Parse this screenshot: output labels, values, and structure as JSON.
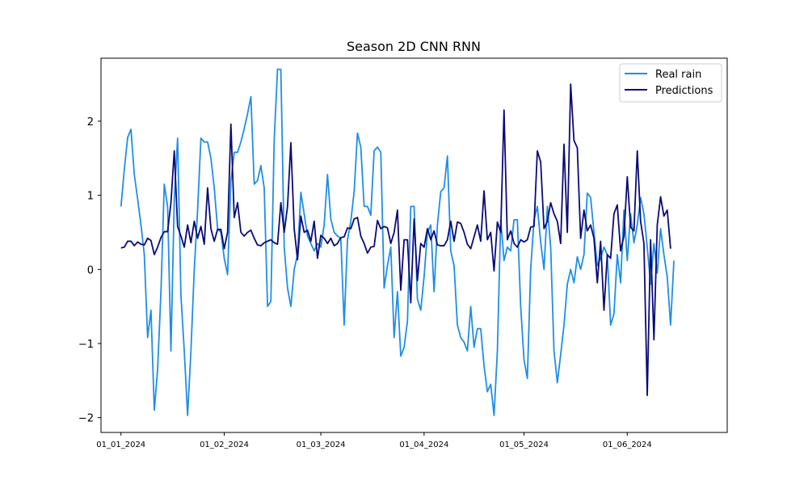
{
  "chart_data": {
    "type": "line",
    "title": "Season 2D CNN RNN",
    "xlabel": "",
    "ylabel": "",
    "ylim": [
      -2.2,
      2.85
    ],
    "xlim": [
      -6,
      182
    ],
    "yticks": [
      -2,
      -1,
      0,
      1,
      2
    ],
    "xticks": [
      {
        "day": 0,
        "label": "01_01_2024"
      },
      {
        "day": 31,
        "label": "01_02_2024"
      },
      {
        "day": 60,
        "label": "01_03_2024"
      },
      {
        "day": 91,
        "label": "01_04_2024"
      },
      {
        "day": 121,
        "label": "01_05_2024"
      },
      {
        "day": 152,
        "label": "01_06_2024"
      }
    ],
    "grid": false,
    "legend_position": "top-right",
    "series": [
      {
        "name": "Real rain",
        "color": "#1f8ee6",
        "values": [
          0.85,
          1.35,
          1.78,
          1.89,
          1.28,
          0.95,
          0.6,
          0.2,
          -0.92,
          -0.55,
          -1.9,
          -1.35,
          -0.3,
          1.15,
          0.85,
          -1.1,
          0.95,
          1.77,
          -0.35,
          -1.1,
          -1.97,
          -1.1,
          0.0,
          0.8,
          1.77,
          1.72,
          1.72,
          1.5,
          1.1,
          0.55,
          0.5,
          0.15,
          -0.07,
          1.2,
          1.58,
          1.58,
          1.72,
          1.9,
          2.1,
          2.33,
          1.15,
          1.2,
          1.4,
          1.1,
          -0.5,
          -0.43,
          1.75,
          2.7,
          2.7,
          0.3,
          -0.25,
          -0.5,
          0.0,
          0.2,
          1.04,
          0.75,
          0.45,
          0.35,
          0.25,
          0.35,
          0.3,
          0.6,
          1.28,
          0.68,
          0.5,
          0.45,
          0.42,
          -0.75,
          0.4,
          0.65,
          1.05,
          1.84,
          1.65,
          0.85,
          0.85,
          0.73,
          1.6,
          1.65,
          1.58,
          -0.25,
          0.05,
          0.3,
          -0.92,
          -0.3,
          -1.17,
          -1.05,
          -0.7,
          0.85,
          0.85,
          -0.4,
          -0.55,
          -0.1,
          0.5,
          0.6,
          -0.3,
          0.6,
          1.05,
          1.1,
          1.53,
          0.25,
          0.05,
          -0.75,
          -0.92,
          -0.98,
          -1.1,
          -0.5,
          -1.05,
          -0.8,
          -0.8,
          -1.3,
          -1.65,
          -1.55,
          -1.97,
          -1.1,
          0.67,
          0.12,
          0.3,
          0.25,
          0.67,
          0.67,
          -0.5,
          -1.22,
          -1.47,
          0.0,
          0.67,
          0.85,
          0.37,
          0.0,
          0.85,
          0.3,
          -1.1,
          -1.53,
          -1.15,
          -0.75,
          -0.2,
          0.0,
          -0.18,
          0.17,
          0.0,
          0.2,
          1.03,
          0.97,
          0.5,
          0.05,
          0.15,
          0.3,
          0.2,
          -0.75,
          -0.6,
          0.2,
          -0.18,
          0.8,
          0.12,
          0.75,
          0.36,
          0.6,
          0.97,
          0.75,
          0.3,
          -0.2,
          0.35,
          -0.05,
          0.55,
          0.2,
          -0.1,
          -0.75,
          0.12
        ]
      },
      {
        "name": "Predictions",
        "color": "#0a0a78",
        "values": [
          0.29,
          0.3,
          0.38,
          0.38,
          0.32,
          0.37,
          0.34,
          0.33,
          0.42,
          0.39,
          0.2,
          0.3,
          0.43,
          0.51,
          0.51,
          0.9,
          1.6,
          0.58,
          0.45,
          0.3,
          0.6,
          0.36,
          0.65,
          0.42,
          0.58,
          0.34,
          1.1,
          0.55,
          0.38,
          0.54,
          0.54,
          0.28,
          0.5,
          1.96,
          0.7,
          0.9,
          0.5,
          0.45,
          0.5,
          0.53,
          0.42,
          0.33,
          0.32,
          0.36,
          0.38,
          0.4,
          0.36,
          0.34,
          0.9,
          0.5,
          0.85,
          1.71,
          0.55,
          0.13,
          0.72,
          0.5,
          0.53,
          0.38,
          0.65,
          0.15,
          0.46,
          0.42,
          0.35,
          0.42,
          0.32,
          0.35,
          0.43,
          0.44,
          0.56,
          0.55,
          0.68,
          0.7,
          0.45,
          0.35,
          0.22,
          0.3,
          0.31,
          0.66,
          0.55,
          0.58,
          0.56,
          0.35,
          0.5,
          0.8,
          -0.28,
          0.4,
          0.4,
          -0.45,
          0.68,
          -0.15,
          0.35,
          0.3,
          0.55,
          0.4,
          0.52,
          0.33,
          0.32,
          0.32,
          0.4,
          0.65,
          0.38,
          0.64,
          0.62,
          0.5,
          0.34,
          0.28,
          0.44,
          0.6,
          0.38,
          1.06,
          0.4,
          0.5,
          -0.02,
          0.64,
          0.5,
          2.15,
          0.4,
          0.52,
          0.35,
          0.3,
          0.4,
          0.37,
          0.4,
          0.57,
          0.58,
          1.6,
          1.45,
          0.55,
          0.65,
          0.9,
          0.75,
          0.65,
          0.35,
          1.69,
          0.5,
          2.5,
          1.74,
          1.64,
          0.42,
          0.8,
          0.52,
          0.6,
          0.42,
          -0.18,
          0.38,
          -0.55,
          0.2,
          0.15,
          0.75,
          0.87,
          0.25,
          0.45,
          1.25,
          0.57,
          0.52,
          1.6,
          0.65,
          0.35,
          -1.7,
          0.4,
          -0.95,
          0.6,
          0.98,
          0.72,
          0.8,
          0.28
        ]
      }
    ]
  }
}
